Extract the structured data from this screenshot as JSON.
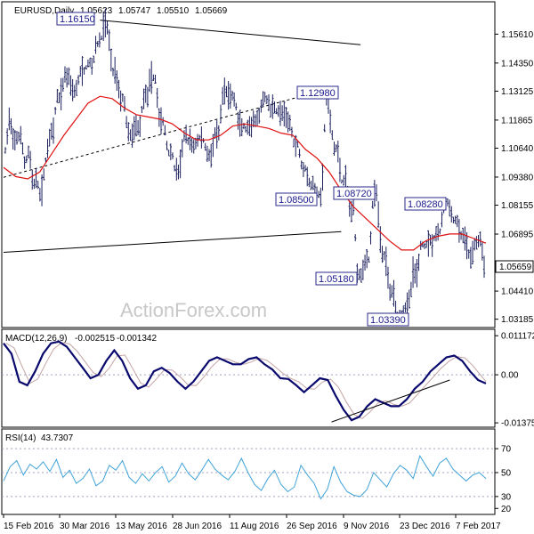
{
  "header": {
    "symbol": "EURUSD,Daily",
    "open": "1.05623",
    "high": "1.05747",
    "low": "1.05510",
    "close": "1.05669"
  },
  "watermark": "ActionForex.com",
  "last_price_label": "1.05659",
  "colors": {
    "price_bars": "#1a1f5c",
    "moving_average": "#e01010",
    "macd_line": "#0a0a6e",
    "macd_signal": "#c4a4a4",
    "rsi_line": "#3fa3d8",
    "label_box": "#2a2a8c",
    "grid_dash": "#a0a0c0",
    "watermark": "#c8c8c8"
  },
  "chart_data": [
    {
      "type": "line",
      "panel": "price",
      "description_series": [
        "EURUSD daily price",
        "moving average"
      ],
      "y_ticks": [
        "1.15610",
        "1.14350",
        "1.13125",
        "1.11865",
        "1.10640",
        "1.09380",
        "1.08155",
        "1.06895",
        "1.04410",
        "1.03185"
      ],
      "ylim": [
        1.029,
        1.164
      ],
      "x_ticks": [
        "15 Feb 2016",
        "30 Mar 2016",
        "13 May 2016",
        "28 Jun 2016",
        "11 Aug 2016",
        "26 Sep 2016",
        "9 Nov 2016",
        "23 Dec 2016",
        "7 Feb 2017"
      ],
      "price_path": [
        [
          1.105,
          1.12
        ],
        [
          1.108,
          1.112
        ],
        [
          1.11,
          1.099
        ],
        [
          1.106,
          1.09
        ],
        [
          1.092,
          1.085
        ],
        [
          1.098,
          1.112
        ],
        [
          1.112,
          1.128
        ],
        [
          1.129,
          1.138
        ],
        [
          1.138,
          1.132
        ],
        [
          1.132,
          1.14
        ],
        [
          1.14,
          1.144
        ],
        [
          1.142,
          1.152
        ],
        [
          1.152,
          1.1615
        ],
        [
          1.158,
          1.14
        ],
        [
          1.14,
          1.128
        ],
        [
          1.128,
          1.112
        ],
        [
          1.112,
          1.116
        ],
        [
          1.116,
          1.13
        ],
        [
          1.13,
          1.138
        ],
        [
          1.136,
          1.118
        ],
        [
          1.118,
          1.105
        ],
        [
          1.105,
          1.096
        ],
        [
          1.096,
          1.112
        ],
        [
          1.11,
          1.108
        ],
        [
          1.108,
          1.111
        ],
        [
          1.11,
          1.104
        ],
        [
          1.104,
          1.112
        ],
        [
          1.112,
          1.131
        ],
        [
          1.131,
          1.129
        ],
        [
          1.128,
          1.116
        ],
        [
          1.116,
          1.114
        ],
        [
          1.114,
          1.119
        ],
        [
          1.118,
          1.128
        ],
        [
          1.128,
          1.124
        ],
        [
          1.124,
          1.122
        ],
        [
          1.122,
          1.118
        ],
        [
          1.118,
          1.108
        ],
        [
          1.108,
          1.098
        ],
        [
          1.098,
          1.09
        ],
        [
          1.09,
          1.086
        ],
        [
          1.086,
          1.1298
        ],
        [
          1.12,
          1.106
        ],
        [
          1.106,
          1.092
        ],
        [
          1.092,
          1.08
        ],
        [
          1.08,
          1.0518
        ],
        [
          1.052,
          1.058
        ],
        [
          1.058,
          1.0872
        ],
        [
          1.085,
          1.06
        ],
        [
          1.06,
          1.045
        ],
        [
          1.045,
          1.0339
        ],
        [
          1.034,
          1.038
        ],
        [
          1.038,
          1.052
        ],
        [
          1.052,
          1.064
        ],
        [
          1.064,
          1.066
        ],
        [
          1.066,
          1.07
        ],
        [
          1.07,
          1.0828
        ],
        [
          1.082,
          1.075
        ],
        [
          1.075,
          1.068
        ],
        [
          1.068,
          1.06
        ],
        [
          1.06,
          1.066
        ],
        [
          1.066,
          1.0566
        ]
      ],
      "ma_path": [
        1.098,
        1.094,
        1.093,
        1.096,
        1.104,
        1.112,
        1.119,
        1.126,
        1.129,
        1.128,
        1.124,
        1.121,
        1.12,
        1.119,
        1.117,
        1.113,
        1.11,
        1.11,
        1.112,
        1.116,
        1.117,
        1.116,
        1.115,
        1.113,
        1.112,
        1.106,
        1.102,
        1.096,
        1.088,
        1.081,
        1.076,
        1.071,
        1.066,
        1.062,
        1.062,
        1.066,
        1.068,
        1.069,
        1.069,
        1.067,
        1.065
      ],
      "trendlines": [
        {
          "from": [
            0.0,
            1.0937
          ],
          "to": [
            0.64,
            1.1303
          ],
          "style": "dashed"
        },
        {
          "from": [
            0.0,
            1.061
          ],
          "to": [
            0.7,
            1.07
          ],
          "style": "solid"
        },
        {
          "from": [
            0.2,
            1.1622
          ],
          "to": [
            0.74,
            1.1515
          ],
          "style": "solid"
        }
      ],
      "labels": [
        {
          "text": "1.16150",
          "price": 1.1615
        },
        {
          "text": "1.12980",
          "price": 1.1298
        },
        {
          "text": "1.08500",
          "price": 1.085
        },
        {
          "text": "1.08720",
          "price": 1.0872
        },
        {
          "text": "1.08280",
          "price": 1.0828
        },
        {
          "text": "1.05180",
          "price": 1.0518
        },
        {
          "text": "1.03390",
          "price": 1.0339
        }
      ]
    },
    {
      "type": "line",
      "panel": "macd",
      "title": "MACD(12,26,9)",
      "values": [
        "-0.002515",
        "-0.001342"
      ],
      "y_ticks": [
        "0.011172",
        "0.00",
        "-0.01375"
      ],
      "ylim": [
        -0.015,
        0.0125
      ],
      "macd_path": [
        0.009,
        0.006,
        -0.002,
        -0.003,
        0.001,
        0.006,
        0.009,
        0.0095,
        0.008,
        0.005,
        0.002,
        -0.001,
        0.0,
        0.004,
        0.007,
        0.004,
        -0.001,
        -0.004,
        -0.003,
        0.001,
        0.002,
        0.0005,
        -0.002,
        -0.004,
        -0.002,
        0.001,
        0.004,
        0.005,
        0.004,
        0.003,
        0.003,
        0.0045,
        0.005,
        0.003,
        0.0015,
        -0.001,
        -0.0012,
        -0.003,
        -0.005,
        -0.003,
        -0.001,
        -0.0015,
        -0.006,
        -0.01,
        -0.013,
        -0.012,
        -0.009,
        -0.007,
        -0.008,
        -0.009,
        -0.009,
        -0.007,
        -0.004,
        -0.002,
        0.001,
        0.003,
        0.005,
        0.0055,
        0.004,
        0.001,
        -0.0015,
        -0.0025
      ],
      "trendline": {
        "from": [
          0.68,
          -0.0135
        ],
        "to": [
          0.925,
          -0.0015
        ]
      }
    },
    {
      "type": "line",
      "panel": "rsi",
      "title": "RSI(14)",
      "value": "43.7307",
      "y_ticks": [
        "70",
        "50",
        "30",
        "20"
      ],
      "ylim": [
        15,
        85
      ],
      "rsi_path": [
        43,
        55,
        60,
        48,
        57,
        53,
        59,
        51,
        61,
        46,
        52,
        41,
        45,
        53,
        39,
        43,
        56,
        52,
        60,
        46,
        41,
        49,
        43,
        50,
        55,
        42,
        47,
        58,
        49,
        44,
        52,
        61,
        53,
        48,
        44,
        51,
        62,
        50,
        40,
        35,
        45,
        52,
        40,
        34,
        38,
        56,
        48,
        41,
        28,
        36,
        55,
        42,
        34,
        31,
        30,
        36,
        50,
        44,
        38,
        49,
        56,
        52,
        45,
        64,
        55,
        47,
        58,
        62,
        53,
        48,
        43,
        48,
        50,
        45
      ]
    }
  ]
}
